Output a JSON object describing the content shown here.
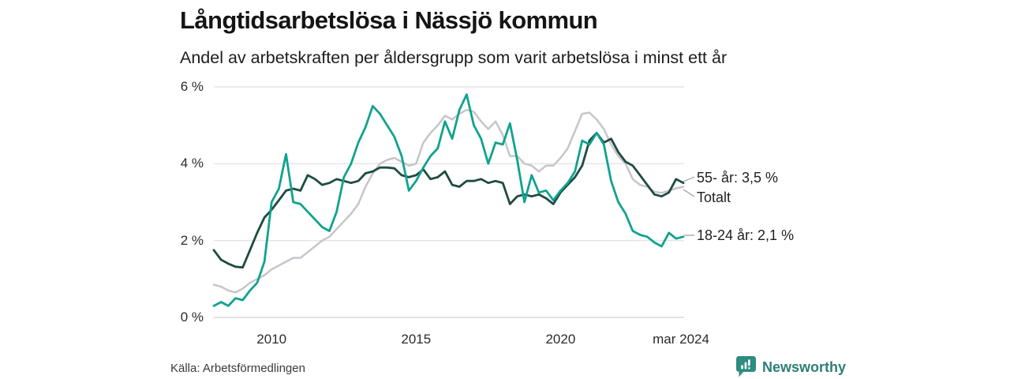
{
  "header": {
    "title": "Långtidsarbetslösa i Nässjö kommun",
    "subtitle": "Andel av arbetskraften per åldersgrupp som varit arbetslösa i minst ett år"
  },
  "footer": {
    "source": "Källa: Arbetsförmedlingen",
    "brand": "Newsworthy"
  },
  "colors": {
    "series_total": "#C5C5CC",
    "series_55": "#1E4B41",
    "series_1824": "#11A28F",
    "grid": "#E4E4E8",
    "grid_zero": "#DADADE",
    "connector": "#9A9A9A",
    "brand_teal": "#2E8C82",
    "brand_text": "#2E7E77"
  },
  "chart_data": {
    "type": "line",
    "title": "Långtidsarbetslösa i Nässjö kommun",
    "subtitle": "Andel av arbetskraften per åldersgrupp som varit arbetslösa i minst ett år",
    "unit": "% av arbetskraften",
    "grid": "horizontal",
    "legend": "end-labels",
    "xlim": [
      2008.0,
      2024.25
    ],
    "ylim": [
      0,
      6
    ],
    "yticks": [
      {
        "value": 0,
        "label": "0 %"
      },
      {
        "value": 2,
        "label": "2 %"
      },
      {
        "value": 4,
        "label": "4 %"
      },
      {
        "value": 6,
        "label": "6 %"
      }
    ],
    "xticks": [
      {
        "value": 2010,
        "label": "2010"
      },
      {
        "value": 2015,
        "label": "2015"
      },
      {
        "value": 2020,
        "label": "2020"
      },
      {
        "value": 2024.17,
        "label": "mar 2024"
      }
    ],
    "x": [
      2008.0,
      2008.25,
      2008.5,
      2008.75,
      2009.0,
      2009.25,
      2009.5,
      2009.75,
      2010.0,
      2010.25,
      2010.5,
      2010.75,
      2011.0,
      2011.25,
      2011.5,
      2011.75,
      2012.0,
      2012.25,
      2012.5,
      2012.75,
      2013.0,
      2013.25,
      2013.5,
      2013.75,
      2014.0,
      2014.25,
      2014.5,
      2014.75,
      2015.0,
      2015.25,
      2015.5,
      2015.75,
      2016.0,
      2016.25,
      2016.5,
      2016.75,
      2017.0,
      2017.25,
      2017.5,
      2017.75,
      2018.0,
      2018.25,
      2018.5,
      2018.75,
      2019.0,
      2019.25,
      2019.5,
      2019.75,
      2020.0,
      2020.25,
      2020.5,
      2020.75,
      2021.0,
      2021.25,
      2021.5,
      2021.75,
      2022.0,
      2022.25,
      2022.5,
      2022.75,
      2023.0,
      2023.25,
      2023.5,
      2023.75,
      2024.0,
      2024.25
    ],
    "series": [
      {
        "id": "total",
        "name": "Totalt",
        "end_label": "Totalt",
        "end_value": null,
        "color": "#C5C5CC",
        "width": 2.5,
        "values": [
          0.85,
          0.8,
          0.7,
          0.65,
          0.75,
          0.9,
          1.0,
          1.1,
          1.25,
          1.35,
          1.45,
          1.55,
          1.55,
          1.7,
          1.85,
          2.0,
          2.1,
          2.3,
          2.5,
          2.7,
          2.95,
          3.4,
          3.75,
          4.0,
          4.1,
          4.15,
          4.05,
          3.95,
          4.0,
          4.55,
          4.8,
          5.0,
          5.25,
          5.15,
          5.3,
          5.4,
          5.35,
          5.1,
          4.9,
          5.1,
          4.75,
          4.2,
          4.2,
          4.0,
          3.95,
          3.8,
          3.95,
          3.95,
          4.15,
          4.4,
          4.85,
          5.3,
          5.33,
          5.15,
          4.9,
          4.5,
          4.2,
          4.0,
          3.6,
          3.45,
          3.4,
          3.27,
          3.24,
          3.3,
          3.36,
          3.4
        ]
      },
      {
        "id": "55",
        "name": "55- år",
        "end_label": "55- år: 3,5 %",
        "end_value": 3.5,
        "color": "#1E4B41",
        "width": 2.8,
        "values": [
          1.75,
          1.5,
          1.4,
          1.32,
          1.3,
          1.75,
          2.2,
          2.6,
          2.8,
          3.05,
          3.3,
          3.35,
          3.3,
          3.7,
          3.6,
          3.45,
          3.5,
          3.6,
          3.55,
          3.5,
          3.55,
          3.75,
          3.8,
          3.9,
          3.9,
          3.88,
          3.7,
          3.65,
          3.7,
          3.85,
          3.6,
          3.65,
          3.8,
          3.45,
          3.4,
          3.55,
          3.55,
          3.6,
          3.5,
          3.55,
          3.5,
          2.95,
          3.15,
          3.2,
          3.15,
          3.2,
          3.1,
          2.95,
          3.25,
          3.45,
          3.65,
          3.95,
          4.6,
          4.8,
          4.55,
          4.65,
          4.3,
          4.05,
          3.95,
          3.7,
          3.45,
          3.2,
          3.15,
          3.25,
          3.6,
          3.5
        ]
      },
      {
        "id": "1824",
        "name": "18-24 år",
        "end_label": "18-24 år: 2,1 %",
        "end_value": 2.1,
        "color": "#11A28F",
        "width": 2.8,
        "values": [
          0.3,
          0.4,
          0.3,
          0.5,
          0.45,
          0.7,
          0.9,
          1.45,
          3.0,
          3.35,
          4.25,
          3.0,
          2.95,
          2.75,
          2.55,
          2.35,
          2.25,
          2.75,
          3.65,
          4.0,
          4.55,
          4.95,
          5.5,
          5.3,
          5.0,
          4.7,
          4.2,
          3.3,
          3.55,
          3.9,
          4.2,
          4.4,
          5.1,
          4.65,
          5.4,
          5.8,
          5.0,
          4.65,
          4.0,
          4.55,
          4.5,
          5.05,
          4.1,
          3.0,
          3.7,
          3.25,
          3.3,
          3.05,
          3.3,
          3.5,
          3.8,
          4.6,
          4.5,
          4.8,
          4.5,
          3.55,
          3.0,
          2.7,
          2.25,
          2.15,
          2.1,
          1.95,
          1.85,
          2.2,
          2.05,
          2.1
        ]
      }
    ]
  }
}
